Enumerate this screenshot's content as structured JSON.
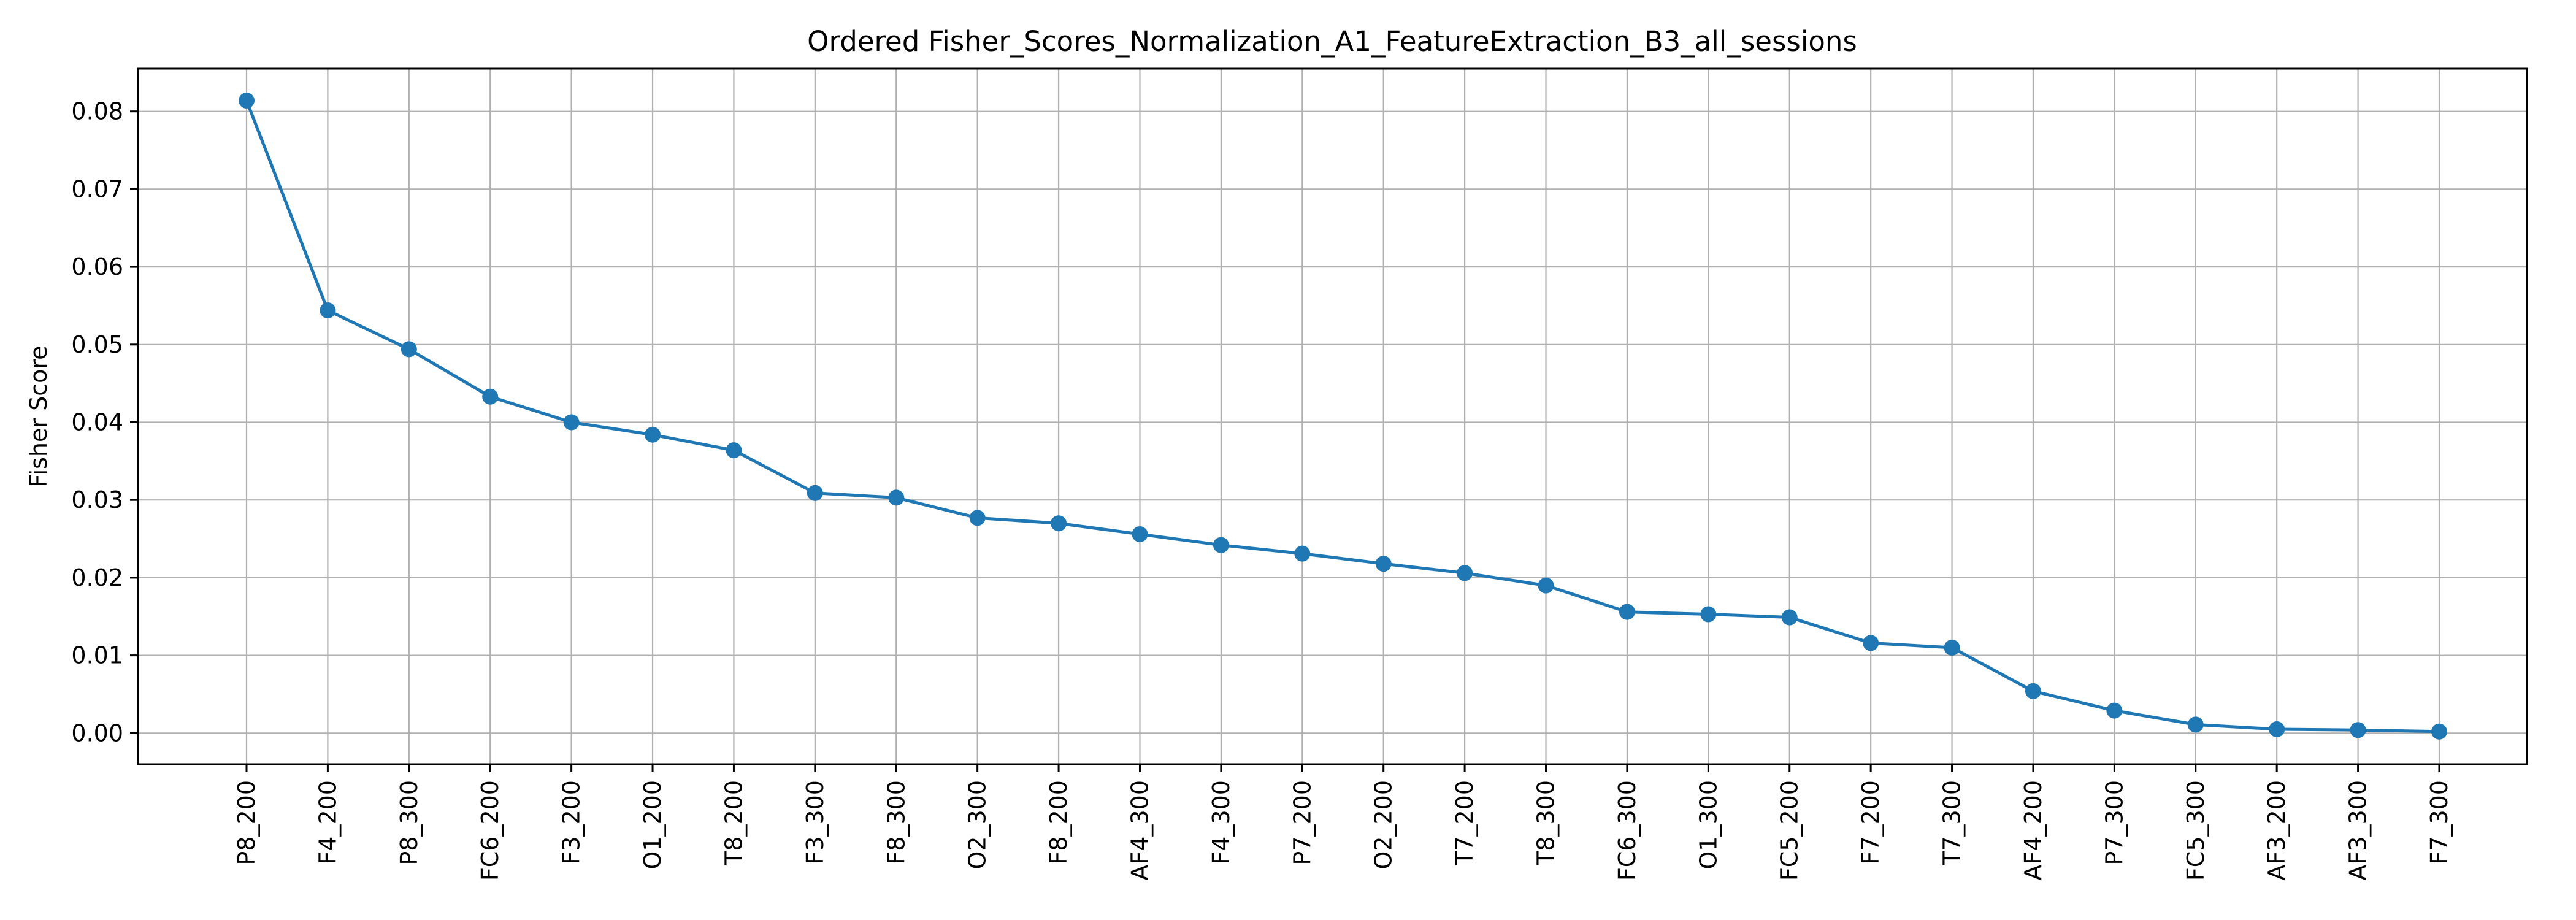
{
  "chart_data": {
    "type": "line",
    "title": "Ordered Fisher_Scores_Normalization_A1_FeatureExtraction_B3_all_sessions",
    "xlabel": "",
    "ylabel": "Fisher Score",
    "categories": [
      "P8_200",
      "F4_200",
      "P8_300",
      "FC6_200",
      "F3_200",
      "O1_200",
      "T8_200",
      "F3_300",
      "F8_300",
      "O2_300",
      "F8_200",
      "AF4_300",
      "F4_300",
      "P7_200",
      "O2_200",
      "T7_200",
      "T8_300",
      "FC6_300",
      "O1_300",
      "FC5_200",
      "F7_200",
      "T7_300",
      "AF4_200",
      "P7_300",
      "FC5_300",
      "AF3_200",
      "AF3_300",
      "F7_300"
    ],
    "series": [
      {
        "values": [
          0.0814,
          0.0544,
          0.0494,
          0.0433,
          0.04,
          0.0384,
          0.0364,
          0.0309,
          0.0303,
          0.0277,
          0.027,
          0.0256,
          0.0242,
          0.0231,
          0.0218,
          0.0206,
          0.019,
          0.0156,
          0.0153,
          0.0149,
          0.0116,
          0.011,
          0.0054,
          0.0029,
          0.0011,
          0.0005,
          0.0004,
          0.0002
        ],
        "color": "#1f77b4",
        "marker": "circle"
      }
    ],
    "ylim": [
      -0.004,
      0.0855
    ],
    "yticks": [
      "0.00",
      "0.01",
      "0.02",
      "0.03",
      "0.04",
      "0.05",
      "0.06",
      "0.07",
      "0.08"
    ],
    "ytick_values": [
      0,
      0.01,
      0.02,
      0.03,
      0.04,
      0.05,
      0.06,
      0.07,
      0.08
    ],
    "grid": true,
    "legend": "none"
  }
}
